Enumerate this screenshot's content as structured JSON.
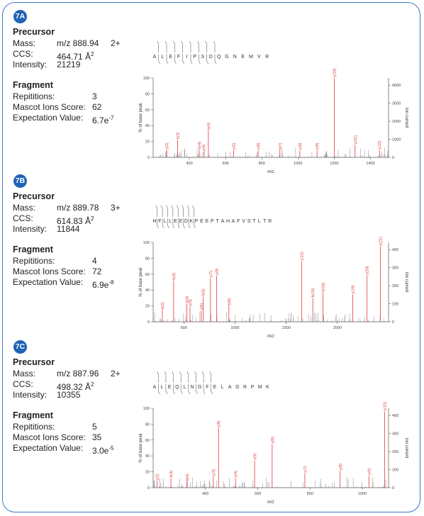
{
  "panels": [
    {
      "id": "7A",
      "precursor": {
        "heading": "Precursor",
        "mass_label": "Mass:",
        "mass_value": "m/z 888.94",
        "charge": "2+",
        "ccs_label": "CCS:",
        "ccs_value": "464.71 Å",
        "ccs_exp": "2",
        "intensity_label": "Intensity:",
        "intensity_value": "21219"
      },
      "fragment": {
        "heading": "Fragment",
        "rep_label": "Repititions:",
        "rep_value": "3",
        "score_label": "Mascot Ions Score:",
        "score_value": "62",
        "exp_label": "Expectation Value:",
        "exp_mantissa": "6.7e",
        "exp_exponent": "-7"
      }
    },
    {
      "id": "7B",
      "precursor": {
        "heading": "Precursor",
        "mass_label": "Mass:",
        "mass_value": "m/z 889.78",
        "charge": "3+",
        "ccs_label": "CCS:",
        "ccs_value": "614.83 Å",
        "ccs_exp": "2",
        "intensity_label": "Intensity:",
        "intensity_value": "11844"
      },
      "fragment": {
        "heading": "Fragment",
        "rep_label": "Repititions:",
        "rep_value": "4",
        "score_label": "Mascot Ions Score:",
        "score_value": "72",
        "exp_label": "Expectation Value:",
        "exp_mantissa": "6.9e",
        "exp_exponent": "-8"
      }
    },
    {
      "id": "7C",
      "precursor": {
        "heading": "Precursor",
        "mass_label": "Mass:",
        "mass_value": "m/z 887.96",
        "charge": "2+",
        "ccs_label": "CCS:",
        "ccs_value": "498.32 Å",
        "ccs_exp": "2",
        "intensity_label": "Intensity:",
        "intensity_value": "10355"
      },
      "fragment": {
        "heading": "Fragment",
        "rep_label": "Repititions:",
        "rep_value": "5",
        "score_label": "Mascot Ions Score:",
        "score_value": "35",
        "exp_label": "Expectation Value:",
        "exp_mantissa": "3.0e",
        "exp_exponent": "-5"
      }
    }
  ],
  "colors": {
    "badge": "#1f63b6",
    "frame": "#3b78c4",
    "annotated_peak": "#e0373a",
    "background_peak": "#8a8a8a"
  },
  "chart_data": [
    {
      "type": "bar",
      "sequence": "ALEFIPSDQGNEMVR",
      "xlabel": "m/z",
      "ylabel": "% of base peak",
      "ylabel_right": "Ion current",
      "xlim": [
        200,
        1500
      ],
      "ylim": [
        0,
        100
      ],
      "xticks": [
        400,
        600,
        800,
        1000,
        1200,
        1400
      ],
      "yticks": [
        0,
        20,
        40,
        60,
        80,
        100
      ],
      "right_ticks": [
        "0",
        "1000",
        "2000",
        "3000",
        "4000"
      ],
      "right_max": 4400,
      "annotated_peaks": [
        {
          "label": "y(2)",
          "x": 275,
          "y": 9
        },
        {
          "label": "b(3)",
          "x": 335,
          "y": 22
        },
        {
          "label": "b(4)",
          "x": 455,
          "y": 10
        },
        {
          "label": "y(4)",
          "x": 478,
          "y": 7
        },
        {
          "label": "b(4)",
          "x": 505,
          "y": 34
        },
        {
          "label": "y(5)",
          "x": 645,
          "y": 9
        },
        {
          "label": "y(6)",
          "x": 780,
          "y": 9
        },
        {
          "label": "y(7)",
          "x": 900,
          "y": 9
        },
        {
          "label": "y(8)",
          "x": 1010,
          "y": 9
        },
        {
          "label": "y(9)",
          "x": 1105,
          "y": 9
        },
        {
          "label": "y(10)",
          "x": 1200,
          "y": 100
        },
        {
          "label": "y(11)",
          "x": 1315,
          "y": 16
        },
        {
          "label": "y(12)",
          "x": 1450,
          "y": 9
        }
      ]
    },
    {
      "type": "bar",
      "sequence": "HFLLEEDKPEEPTAHAFVSTLTR",
      "xlabel": "m/z",
      "ylabel": "% of base peak",
      "ylabel_right": "Ion current",
      "xlim": [
        200,
        2500
      ],
      "ylim": [
        0,
        100
      ],
      "xticks": [
        500,
        1000,
        1500,
        2000
      ],
      "yticks": [
        0,
        20,
        40,
        60,
        80,
        100
      ],
      "right_ticks": [
        "0",
        "100",
        "200",
        "300",
        "400"
      ],
      "right_max": 440,
      "annotated_peaks": [
        {
          "label": "b(2)",
          "x": 290,
          "y": 15
        },
        {
          "label": "b(3)",
          "x": 400,
          "y": 52
        },
        {
          "label": "b(4)",
          "x": 530,
          "y": 23
        },
        {
          "label": "y(5)",
          "x": 560,
          "y": 19
        },
        {
          "label": "y(6)",
          "x": 670,
          "y": 14
        },
        {
          "label": "b(5)",
          "x": 690,
          "y": 32
        },
        {
          "label": "y(7)",
          "x": 760,
          "y": 55
        },
        {
          "label": "y(8)",
          "x": 820,
          "y": 58
        },
        {
          "label": "b(8)",
          "x": 940,
          "y": 20
        },
        {
          "label": "y(15)",
          "x": 1650,
          "y": 76
        },
        {
          "label": "b(15)",
          "x": 1760,
          "y": 30
        },
        {
          "label": "b(16)",
          "x": 1860,
          "y": 37
        },
        {
          "label": "y(19)",
          "x": 2150,
          "y": 34
        },
        {
          "label": "y(20)",
          "x": 2290,
          "y": 58
        },
        {
          "label": "y(21)",
          "x": 2420,
          "y": 95
        }
      ]
    },
    {
      "type": "bar",
      "sequence": "ALEQLNGFELAGRPMK",
      "xlabel": "m/z",
      "ylabel": "% of base peak",
      "ylabel_right": "Ion current",
      "xlim": [
        200,
        1100
      ],
      "ylim": [
        0,
        100
      ],
      "xticks": [
        400,
        600,
        800,
        1000
      ],
      "yticks": [
        0,
        20,
        40,
        60,
        80,
        100
      ],
      "right_ticks": [
        "0",
        "100",
        "200",
        "300",
        "400"
      ],
      "right_max": 440,
      "annotated_peaks": [
        {
          "label": "y(2)",
          "x": 215,
          "y": 8
        },
        {
          "label": "b(3)",
          "x": 268,
          "y": 12
        },
        {
          "label": "b(4)",
          "x": 330,
          "y": 8
        },
        {
          "label": "y(3)",
          "x": 430,
          "y": 14
        },
        {
          "label": "y(8)",
          "x": 450,
          "y": 75
        },
        {
          "label": "y(4)",
          "x": 515,
          "y": 12
        },
        {
          "label": "y(5)",
          "x": 588,
          "y": 34
        },
        {
          "label": "y(6)",
          "x": 655,
          "y": 55
        },
        {
          "label": "y(7)",
          "x": 780,
          "y": 18
        },
        {
          "label": "y(8)",
          "x": 915,
          "y": 21
        },
        {
          "label": "y(9)",
          "x": 1025,
          "y": 15
        },
        {
          "label": "y(10)",
          "x": 1085,
          "y": 96
        }
      ]
    }
  ]
}
